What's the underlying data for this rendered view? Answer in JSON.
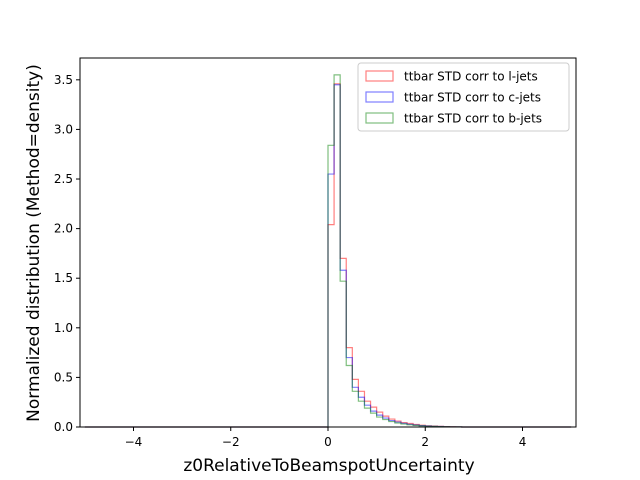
{
  "chart_data": {
    "type": "histogram-step",
    "title": "",
    "xlabel": "z0RelativeToBeamspotUncertainty",
    "ylabel": "Normalized distribution (Method=density)",
    "xlim": [
      -5.1,
      5.1
    ],
    "ylim": [
      0,
      3.72
    ],
    "x_ticks": [
      -4,
      -2,
      0,
      2,
      4
    ],
    "x_tick_labels": [
      "−4",
      "−2",
      "0",
      "2",
      "4"
    ],
    "y_ticks": [
      0.0,
      0.5,
      1.0,
      1.5,
      2.0,
      2.5,
      3.0,
      3.5
    ],
    "y_tick_labels": [
      "0.0",
      "0.5",
      "1.0",
      "1.5",
      "2.0",
      "2.5",
      "3.0",
      "3.5"
    ],
    "grid": false,
    "legend_position": "upper-right",
    "range": [
      -5,
      5
    ],
    "bin_width": 0.125,
    "series": [
      {
        "name": "ttbar STD corr to l-jets",
        "color": "#ff0000",
        "opacity": 0.5,
        "bins": [
          [
            0.0,
            2.04
          ],
          [
            0.125,
            3.46
          ],
          [
            0.25,
            1.7
          ],
          [
            0.375,
            0.8
          ],
          [
            0.5,
            0.48
          ],
          [
            0.625,
            0.36
          ],
          [
            0.75,
            0.26
          ],
          [
            0.875,
            0.2
          ],
          [
            1.0,
            0.15
          ],
          [
            1.125,
            0.11
          ],
          [
            1.25,
            0.08
          ],
          [
            1.375,
            0.06
          ],
          [
            1.5,
            0.045
          ],
          [
            1.625,
            0.035
          ],
          [
            1.75,
            0.025
          ],
          [
            1.875,
            0.018
          ],
          [
            2.0,
            0.012
          ],
          [
            2.125,
            0.009
          ],
          [
            2.25,
            0.006
          ],
          [
            2.375,
            0.004
          ],
          [
            2.5,
            0.003
          ],
          [
            2.625,
            0.002
          ]
        ]
      },
      {
        "name": "ttbar STD corr to c-jets",
        "color": "#0000ff",
        "opacity": 0.5,
        "bins": [
          [
            0.0,
            2.55
          ],
          [
            0.125,
            3.45
          ],
          [
            0.25,
            1.58
          ],
          [
            0.375,
            0.7
          ],
          [
            0.5,
            0.4
          ],
          [
            0.625,
            0.3
          ],
          [
            0.75,
            0.22
          ],
          [
            0.875,
            0.16
          ],
          [
            1.0,
            0.12
          ],
          [
            1.125,
            0.09
          ],
          [
            1.25,
            0.065
          ],
          [
            1.375,
            0.05
          ],
          [
            1.5,
            0.037
          ],
          [
            1.625,
            0.027
          ],
          [
            1.75,
            0.02
          ],
          [
            1.875,
            0.014
          ],
          [
            2.0,
            0.01
          ],
          [
            2.125,
            0.007
          ],
          [
            2.25,
            0.005
          ],
          [
            2.375,
            0.003
          ],
          [
            2.5,
            0.002
          ],
          [
            2.625,
            0.001
          ]
        ]
      },
      {
        "name": "ttbar STD corr to b-jets",
        "color": "#008000",
        "opacity": 0.5,
        "bins": [
          [
            0.0,
            2.84
          ],
          [
            0.125,
            3.55
          ],
          [
            0.25,
            1.47
          ],
          [
            0.375,
            0.62
          ],
          [
            0.5,
            0.36
          ],
          [
            0.625,
            0.26
          ],
          [
            0.75,
            0.19
          ],
          [
            0.875,
            0.14
          ],
          [
            1.0,
            0.1
          ],
          [
            1.125,
            0.075
          ],
          [
            1.25,
            0.055
          ],
          [
            1.375,
            0.04
          ],
          [
            1.5,
            0.03
          ],
          [
            1.625,
            0.022
          ],
          [
            1.75,
            0.016
          ],
          [
            1.875,
            0.012
          ],
          [
            2.0,
            0.008
          ],
          [
            2.125,
            0.006
          ],
          [
            2.25,
            0.004
          ],
          [
            2.375,
            0.003
          ],
          [
            2.5,
            0.002
          ],
          [
            2.625,
            0.001
          ]
        ]
      }
    ]
  }
}
